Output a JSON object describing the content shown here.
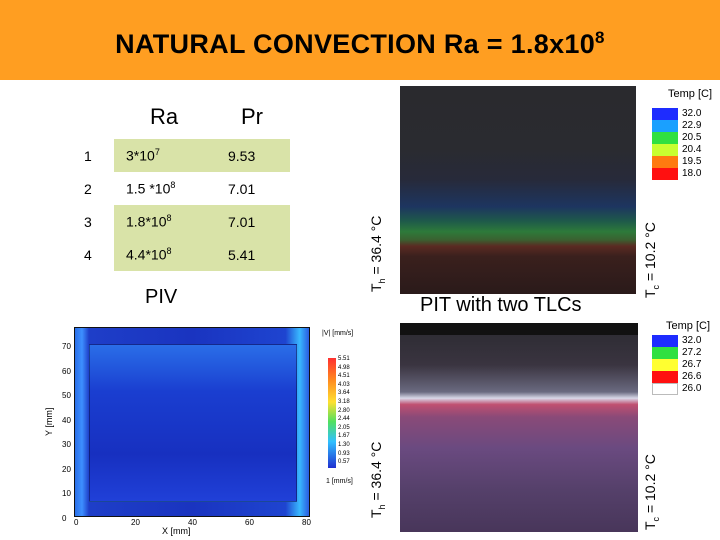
{
  "title": {
    "main": "NATURAL CONVECTION  Ra = 1.8x10",
    "exp": "8"
  },
  "table": {
    "headers": {
      "ra": "Ra",
      "pr": "Pr"
    },
    "rows": [
      {
        "idx": "1",
        "ra_base": "3*10",
        "ra_exp": "7",
        "pr": "9.53"
      },
      {
        "idx": "2",
        "ra_base": "1.5 *10",
        "ra_exp": "8",
        "pr": "7.01"
      },
      {
        "idx": "3",
        "ra_base": "1.8*10",
        "ra_exp": "8",
        "pr": "7.01"
      },
      {
        "idx": "4",
        "ra_base": "4.4*10",
        "ra_exp": "8",
        "pr": "5.41"
      }
    ]
  },
  "captions": {
    "piv": "PIV",
    "pit": "PIT with two TLCs"
  },
  "labels": {
    "th_prefix": "T",
    "th_sub": "h",
    "th_value": " = 36.4 °C",
    "tc_prefix": "T",
    "tc_sub": "c",
    "tc_value": " = 10.2 °C"
  },
  "legend_top": {
    "title": "Temp [C]",
    "values": [
      "32.0",
      "22.9",
      "20.5",
      "20.4",
      "19.5",
      "18.0"
    ],
    "colors": [
      "#1e2cff",
      "#1aa0ff",
      "#30e040",
      "#c8ff30",
      "#ff7a10",
      "#ff1010"
    ]
  },
  "legend_bottom": {
    "title": "Temp [C]",
    "values": [
      "32.0",
      "27.2",
      "26.7",
      "26.6",
      "26.0"
    ],
    "colors": [
      "#1e2cff",
      "#30e040",
      "#ffff30",
      "#ff1010",
      "#ffffff"
    ]
  },
  "piv": {
    "yticks": [
      "70",
      "60",
      "50",
      "40",
      "30",
      "20",
      "10",
      "0"
    ],
    "xticks": [
      "0",
      "20",
      "40",
      "60",
      "80"
    ],
    "xlabel": "X [mm]",
    "ylabel": "Y [mm]",
    "cb_title": "|V| [mm/s]",
    "cb_ticks": [
      "5.51",
      "4.98",
      "4.51",
      "4.03",
      "3.64",
      "3.18",
      "2.80",
      "2.44",
      "2.05",
      "1.67",
      "1.30",
      "0.93",
      "0.57"
    ],
    "ref_vector": "1 [mm/s]"
  }
}
